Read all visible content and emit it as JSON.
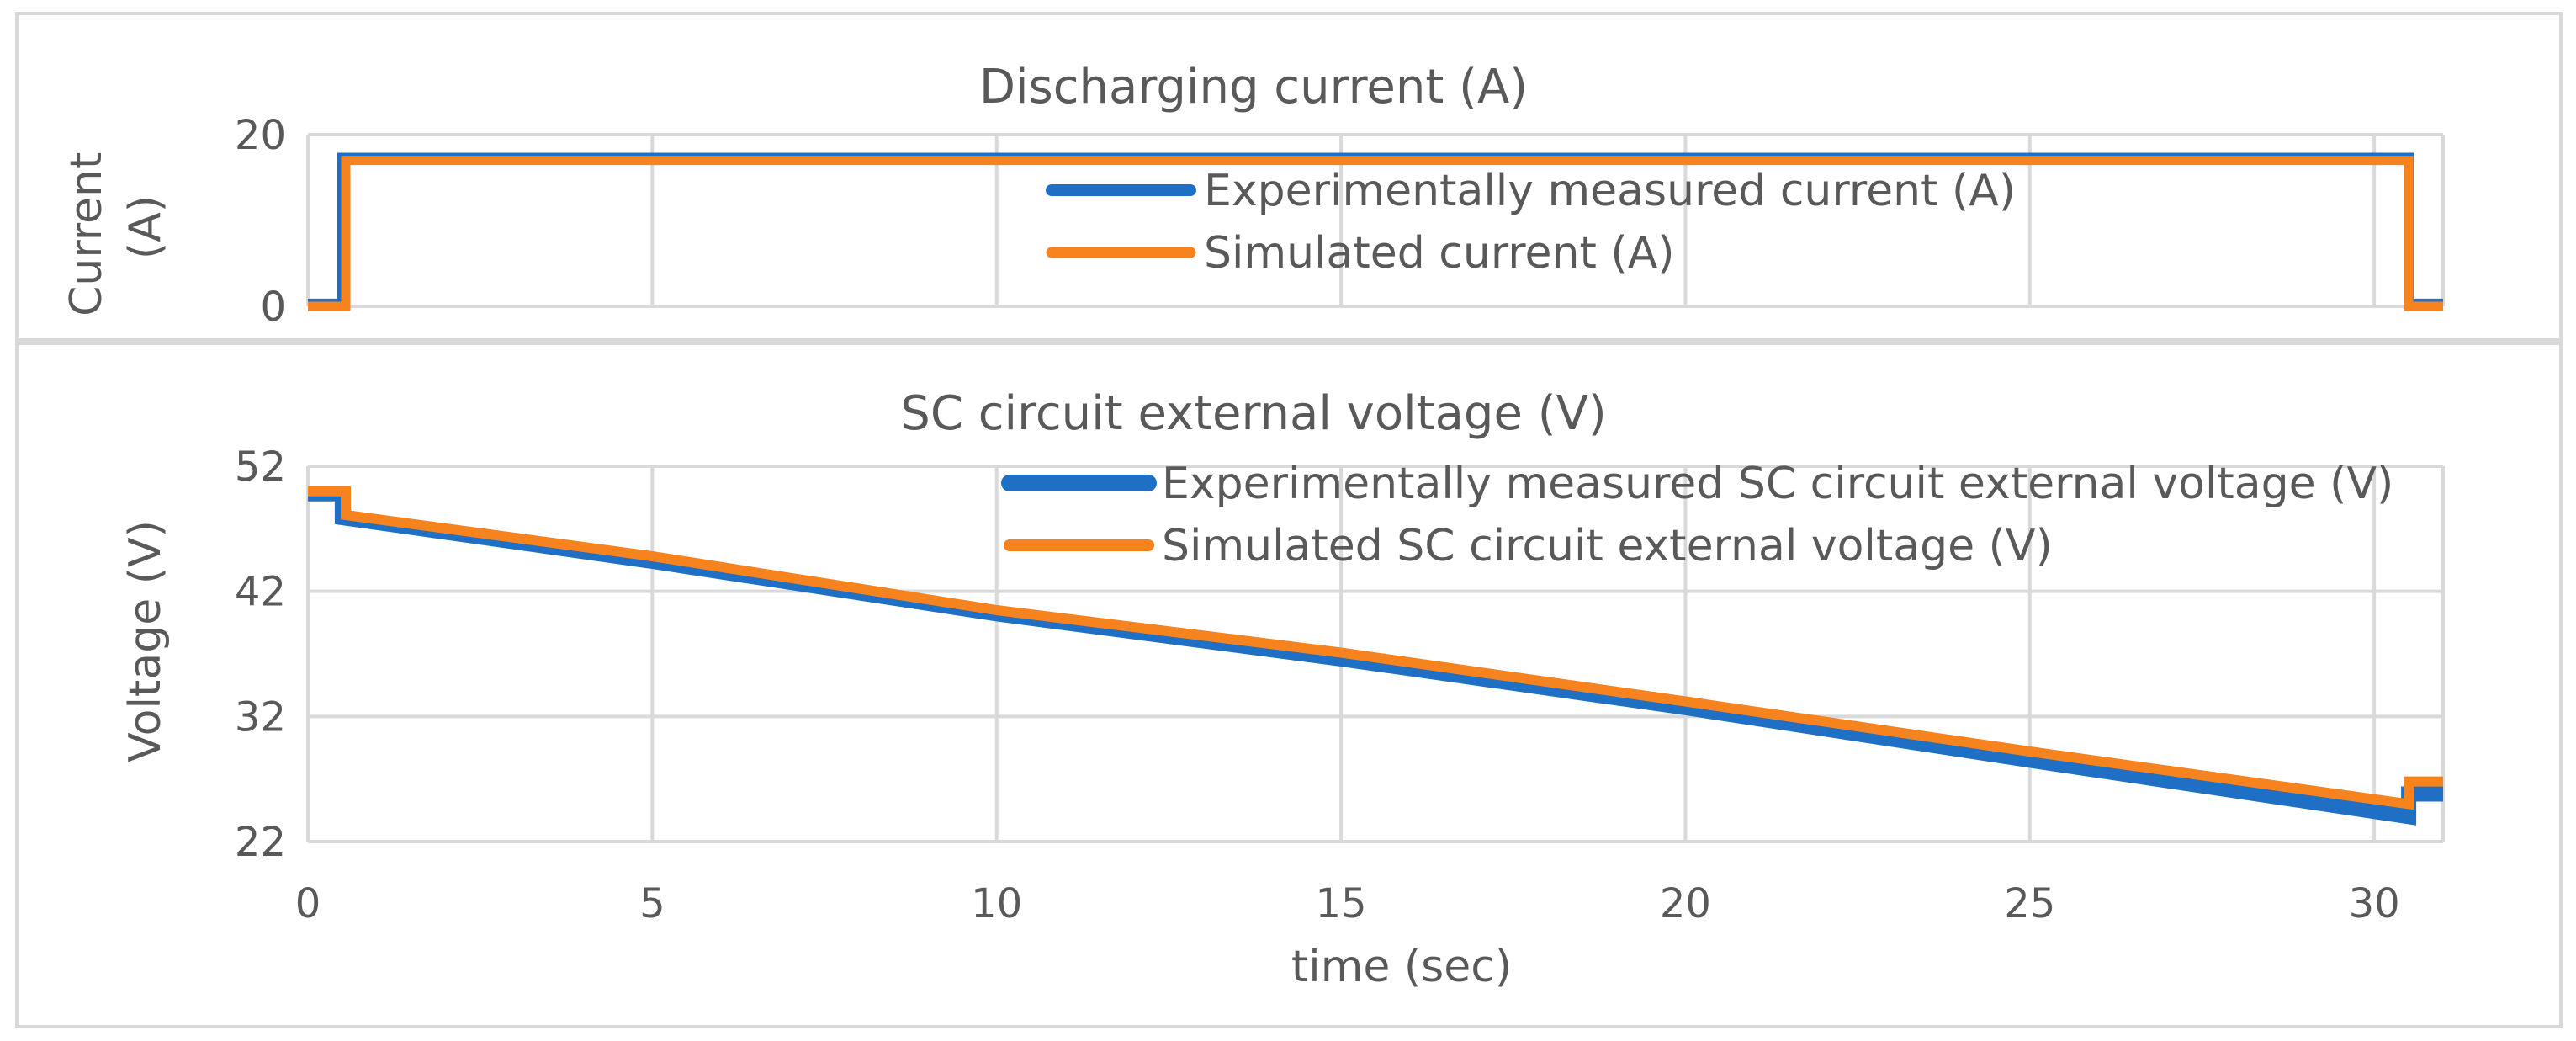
{
  "chart_data": [
    {
      "type": "line",
      "title": "Discharging current (A)",
      "ylabel": "Current (A)",
      "xlabel": "",
      "xlim": [
        0,
        31
      ],
      "ylim": [
        0,
        20
      ],
      "yticks": [
        "0",
        "20"
      ],
      "xgrid": [
        0,
        5,
        10,
        15,
        20,
        25,
        30,
        31
      ],
      "legend_position": "center-right",
      "colors": {
        "experimental": "#1f6fc5",
        "simulated": "#f7831e"
      },
      "series": [
        {
          "name": "Experimentally measured current (A)",
          "x": [
            0,
            0.5,
            0.5,
            30.5,
            30.5,
            31
          ],
          "y": [
            0.3,
            0.3,
            17.3,
            17.3,
            0.3,
            0.3
          ]
        },
        {
          "name": "Simulated current (A)",
          "x": [
            0,
            0.55,
            0.55,
            30.5,
            30.5,
            31
          ],
          "y": [
            0,
            0,
            17.0,
            17.0,
            0,
            0
          ]
        }
      ]
    },
    {
      "type": "line",
      "title": "SC circuit external voltage (V)",
      "ylabel": "Voltage (V)",
      "xlabel": "time (sec)",
      "xlim": [
        0,
        31
      ],
      "ylim": [
        22,
        52
      ],
      "yticks": [
        "22",
        "32",
        "42",
        "52"
      ],
      "xticks": [
        "0",
        "5",
        "10",
        "15",
        "20",
        "25",
        "30"
      ],
      "xgrid": [
        0,
        5,
        10,
        15,
        20,
        25,
        30,
        31
      ],
      "legend_position": "top-right",
      "colors": {
        "experimental": "#1f6fc5",
        "simulated": "#f7831e"
      },
      "series": [
        {
          "name": "Experimentally measured SC circuit external voltage (V)",
          "x": [
            0,
            0.5,
            0.5,
            5,
            10,
            15,
            20,
            25,
            30.5,
            30.5,
            31
          ],
          "y": [
            49.8,
            49.8,
            47.9,
            44.4,
            40.2,
            36.6,
            32.7,
            28.5,
            24.0,
            25.8,
            25.8
          ]
        },
        {
          "name": "Simulated SC circuit external voltage (V)",
          "x": [
            0,
            0.55,
            0.55,
            5,
            10,
            15,
            20,
            25,
            30.5,
            30.5,
            31
          ],
          "y": [
            50.0,
            50.0,
            48.1,
            44.8,
            40.5,
            37.1,
            33.2,
            29.2,
            25.0,
            26.8,
            26.8
          ]
        }
      ]
    }
  ]
}
